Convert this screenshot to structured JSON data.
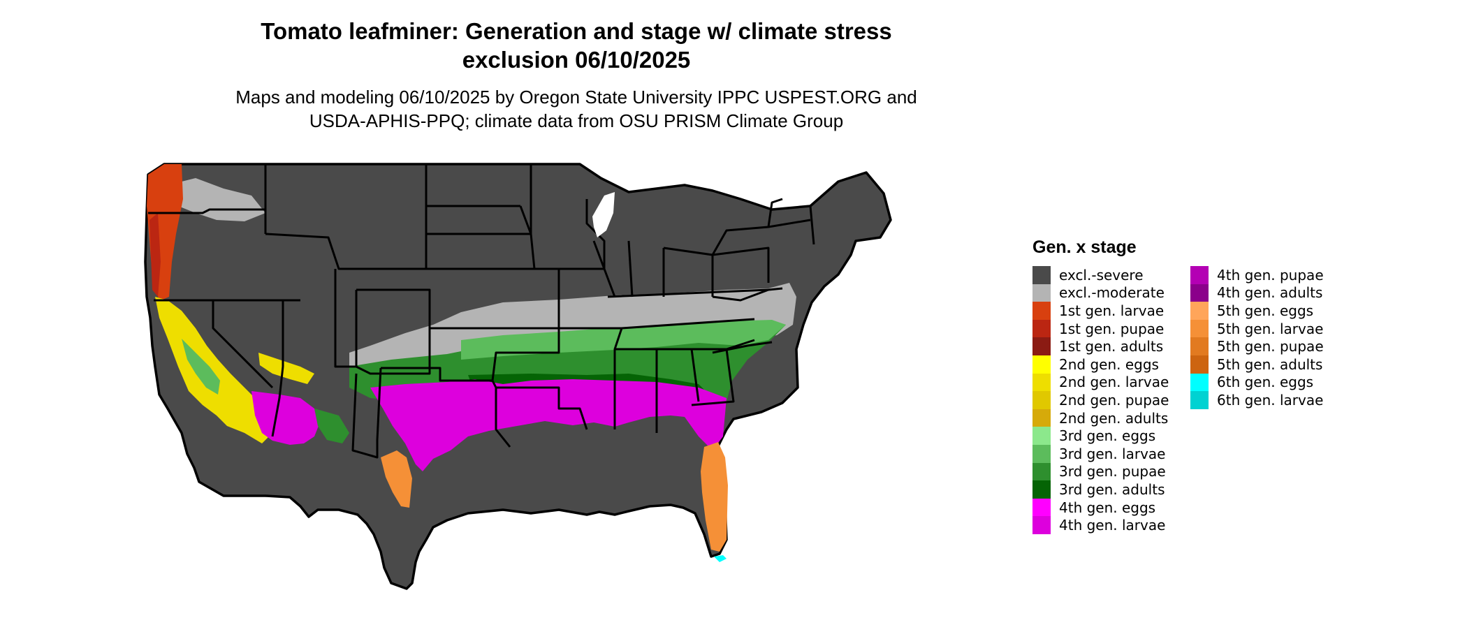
{
  "map": {
    "title_line1": "Tomato leafminer: Generation and stage w/ climate stress",
    "title_line2": "exclusion 06/10/2025",
    "subtitle_line1": "Maps and modeling 06/10/2025 by Oregon State University IPPC USPEST.ORG and",
    "subtitle_line2": "USDA-APHIS-PPQ; climate data from OSU PRISM Climate Group"
  },
  "legend": {
    "title": "Gen. x stage",
    "columns": [
      [
        {
          "label": "excl.-severe",
          "color": "#4a4a4a"
        },
        {
          "label": "excl.-moderate",
          "color": "#b4b4b4"
        },
        {
          "label": "1st gen. larvae",
          "color": "#d8400f"
        },
        {
          "label": "1st gen. pupae",
          "color": "#bb2612"
        },
        {
          "label": "1st gen. adults",
          "color": "#8b1b13"
        },
        {
          "label": "2nd gen. eggs",
          "color": "#ffff00"
        },
        {
          "label": "2nd gen. larvae",
          "color": "#eede00"
        },
        {
          "label": "2nd gen. pupae",
          "color": "#e0c800"
        },
        {
          "label": "2nd gen. adults",
          "color": "#d6aa0a"
        },
        {
          "label": "3rd gen. eggs",
          "color": "#8ce88c"
        },
        {
          "label": "3rd gen. larvae",
          "color": "#5cbc5c"
        },
        {
          "label": "3rd gen. pupae",
          "color": "#2e8f2e"
        },
        {
          "label": "3rd gen. adults",
          "color": "#056405"
        },
        {
          "label": "4th gen. eggs",
          "color": "#ff00ff"
        },
        {
          "label": "4th gen. larvae",
          "color": "#dd00dd"
        }
      ],
      [
        {
          "label": "4th gen. pupae",
          "color": "#b400b4"
        },
        {
          "label": "4th gen. adults",
          "color": "#8b008b"
        },
        {
          "label": "5th gen. eggs",
          "color": "#ffa55a"
        },
        {
          "label": "5th gen. larvae",
          "color": "#f59037"
        },
        {
          "label": "5th gen. pupae",
          "color": "#e27a20"
        },
        {
          "label": "5th gen. adults",
          "color": "#cd6410"
        },
        {
          "label": "6th gen. eggs",
          "color": "#00ffff"
        },
        {
          "label": "6th gen. larvae",
          "color": "#00d2d2"
        }
      ]
    ]
  }
}
